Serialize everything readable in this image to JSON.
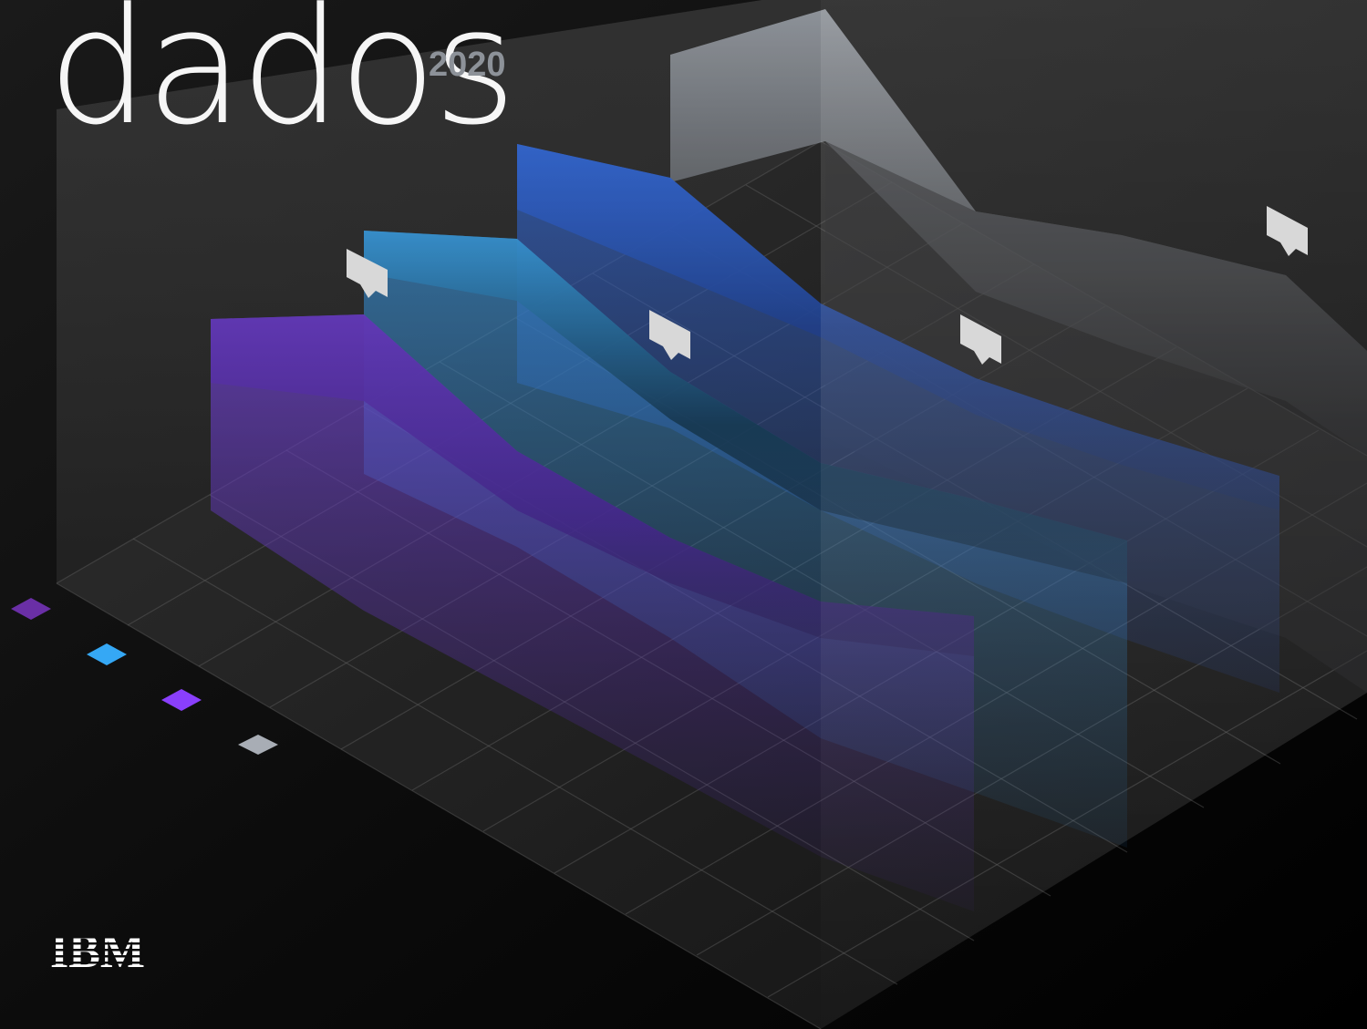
{
  "cover": {
    "title": "dados",
    "year": "2020",
    "brand": "IBM"
  },
  "colors": {
    "background": "#000000",
    "purple": "#6a2fc8",
    "teal": "#2a86c4",
    "blue": "#1e4fb4",
    "gray": "#a8adb5",
    "legend": [
      "#6a2fa6",
      "#35a8f5",
      "#8a3ffc",
      "#a8adb5"
    ]
  },
  "icons": {
    "markers": [
      "comment-marker-icon",
      "comment-marker-icon",
      "comment-marker-icon",
      "comment-marker-icon"
    ]
  }
}
